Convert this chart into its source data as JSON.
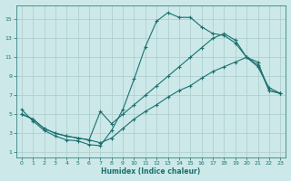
{
  "xlabel": "Humidex (Indice chaleur)",
  "bg_color": "#cce8e8",
  "grid_color": "#aacccc",
  "line_color": "#1a7070",
  "xlim": [
    -0.5,
    23.5
  ],
  "ylim": [
    0.5,
    16.5
  ],
  "xticks": [
    0,
    1,
    2,
    3,
    4,
    5,
    6,
    7,
    8,
    9,
    10,
    11,
    12,
    13,
    14,
    15,
    16,
    17,
    18,
    19,
    20,
    21,
    22,
    23
  ],
  "yticks": [
    1,
    3,
    5,
    7,
    9,
    11,
    13,
    15
  ],
  "line1_x": [
    0,
    1,
    2,
    3,
    4,
    5,
    6,
    7,
    8,
    9,
    10,
    11,
    12,
    13,
    14,
    15,
    16,
    17,
    18,
    19,
    20,
    21,
    22,
    23
  ],
  "line1_y": [
    5.5,
    4.3,
    3.3,
    2.7,
    2.3,
    2.2,
    1.8,
    1.7,
    3.3,
    5.5,
    8.7,
    12.1,
    14.8,
    15.7,
    15.2,
    15.2,
    14.2,
    13.5,
    13.3,
    12.5,
    11.0,
    10.0,
    7.8,
    7.2
  ],
  "line2_x": [
    0,
    1,
    2,
    3,
    4,
    5,
    6,
    7,
    8,
    9,
    10,
    11,
    12,
    13,
    14,
    15,
    16,
    17,
    18,
    19,
    20,
    21,
    22,
    23
  ],
  "line2_y": [
    5.0,
    4.5,
    3.5,
    3.0,
    2.7,
    2.5,
    2.3,
    5.3,
    4.0,
    5.0,
    6.0,
    7.0,
    8.0,
    9.0,
    10.0,
    11.0,
    12.0,
    13.0,
    13.5,
    12.8,
    11.0,
    10.2,
    7.5,
    7.2
  ],
  "line3_x": [
    0,
    1,
    2,
    3,
    4,
    5,
    6,
    7,
    8,
    9,
    10,
    11,
    12,
    13,
    14,
    15,
    16,
    17,
    18,
    19,
    20,
    21,
    22,
    23
  ],
  "line3_y": [
    5.0,
    4.5,
    3.5,
    3.0,
    2.7,
    2.5,
    2.3,
    2.0,
    2.5,
    3.5,
    4.5,
    5.3,
    6.0,
    6.8,
    7.5,
    8.0,
    8.8,
    9.5,
    10.0,
    10.5,
    11.0,
    10.5,
    7.5,
    7.2
  ]
}
